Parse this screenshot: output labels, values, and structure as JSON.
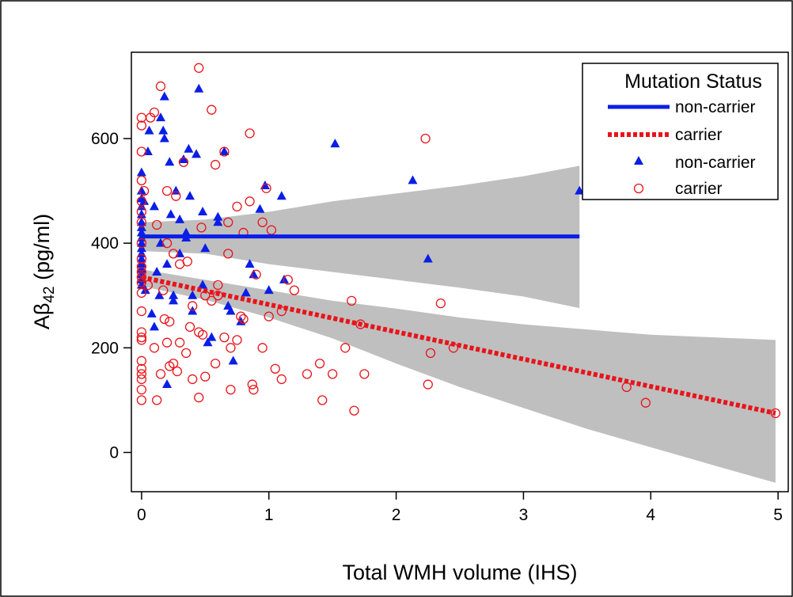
{
  "chart_data": {
    "type": "scatter",
    "xlabel": "Total WMH volume (IHS)",
    "ylabel_main": "Aβ",
    "ylabel_sub": "42",
    "ylabel_unit": " (pg/ml)",
    "xlim": [
      -0.08,
      5.08
    ],
    "ylim": [
      -75,
      765
    ],
    "x_ticks": [
      0,
      1,
      2,
      3,
      4,
      5
    ],
    "y_ticks": [
      0,
      200,
      400,
      600
    ],
    "colors": {
      "non_carrier": "#0a1ee6",
      "carrier": "#e8141a",
      "band": "#bfbfbf"
    },
    "legend": {
      "title": "Mutation Status",
      "position": "top-right",
      "entries": [
        {
          "label": "non-carrier",
          "kind": "solid-line",
          "color": "#0a1ee6"
        },
        {
          "label": "carrier",
          "kind": "dotted-line",
          "color": "#e8141a"
        },
        {
          "label": "non-carrier",
          "kind": "triangle",
          "color": "#0a1ee6"
        },
        {
          "label": "carrier",
          "kind": "circle",
          "color": "#e8141a"
        }
      ]
    },
    "fit_lines": [
      {
        "name": "non-carrier",
        "x": [
          0,
          3.44
        ],
        "y": [
          413,
          413
        ],
        "ci_x": [
          0,
          0.5,
          1.0,
          1.5,
          2.0,
          2.5,
          3.0,
          3.44
        ],
        "ci_upper": [
          440,
          445,
          460,
          480,
          495,
          510,
          528,
          548
        ],
        "ci_lower": [
          385,
          380,
          360,
          345,
          330,
          315,
          298,
          276
        ]
      },
      {
        "name": "carrier",
        "x": [
          0,
          4.98
        ],
        "y": [
          335,
          75
        ],
        "ci_x": [
          0,
          0.5,
          1.0,
          1.5,
          2.0,
          2.5,
          3.0,
          3.5,
          4.0,
          4.5,
          4.98
        ],
        "ci_upper": [
          350,
          330,
          310,
          290,
          275,
          258,
          245,
          235,
          225,
          220,
          215
        ],
        "ci_lower": [
          318,
          292,
          258,
          218,
          170,
          125,
          85,
          45,
          10,
          -25,
          -58
        ]
      }
    ],
    "series": [
      {
        "name": "non-carrier",
        "marker": "triangle",
        "x": [
          0,
          0,
          0,
          0,
          0,
          0,
          0,
          0,
          0,
          0,
          0,
          0,
          0,
          0,
          0,
          0,
          0,
          0,
          0.02,
          0.03,
          0.05,
          0.06,
          0.08,
          0.1,
          0.12,
          0.14,
          0.15,
          0.17,
          0.18,
          0.2,
          0.22,
          0.23,
          0.25,
          0.27,
          0.3,
          0.33,
          0.35,
          0.37,
          0.38,
          0.4,
          0.43,
          0.45,
          0.48,
          0.5,
          0.55,
          0.6,
          0.65,
          0.68,
          0.72,
          0.78,
          0.82,
          0.85,
          0.88,
          0.93,
          0.97,
          1.0,
          1.1,
          1.12,
          1.52,
          2.13,
          2.25,
          3.44,
          0.18,
          0.2,
          0.35,
          0.4,
          0.48,
          0.7,
          0.52,
          0.3,
          0.15,
          0.1,
          0.25,
          0.6
        ],
        "y": [
          535,
          500,
          485,
          470,
          455,
          440,
          430,
          420,
          410,
          400,
          390,
          380,
          370,
          360,
          350,
          340,
          330,
          320,
          480,
          310,
          575,
          615,
          265,
          470,
          345,
          300,
          640,
          615,
          680,
          130,
          555,
          455,
          290,
          500,
          445,
          560,
          420,
          580,
          490,
          300,
          570,
          695,
          460,
          390,
          220,
          440,
          575,
          280,
          175,
          250,
          305,
          360,
          340,
          465,
          510,
          310,
          490,
          330,
          590,
          520,
          370,
          500,
          600,
          360,
          410,
          270,
          320,
          270,
          210,
          380,
          400,
          240,
          300,
          450
        ]
      },
      {
        "name": "carrier",
        "marker": "circle",
        "x": [
          0,
          0,
          0,
          0,
          0,
          0,
          0,
          0,
          0,
          0,
          0,
          0,
          0,
          0,
          0,
          0,
          0,
          0,
          0,
          0,
          0,
          0,
          0,
          0,
          0.02,
          0.05,
          0.07,
          0.1,
          0.12,
          0.15,
          0.17,
          0.2,
          0.2,
          0.22,
          0.22,
          0.25,
          0.27,
          0.3,
          0.33,
          0.36,
          0.4,
          0.45,
          0.45,
          0.47,
          0.5,
          0.55,
          0.58,
          0.6,
          0.65,
          0.68,
          0.7,
          0.75,
          0.8,
          0.85,
          0.85,
          0.87,
          0.9,
          0.95,
          0.98,
          1.0,
          1.02,
          1.05,
          1.1,
          1.15,
          1.2,
          1.4,
          1.42,
          1.5,
          1.6,
          1.65,
          1.67,
          1.72,
          1.75,
          2.23,
          2.25,
          2.27,
          2.35,
          2.45,
          3.81,
          3.96,
          4.98,
          0.1,
          0.2,
          0.3,
          0.4,
          0.5,
          0.6,
          0.7,
          0.8,
          0.15,
          0.25,
          0.35,
          0.45,
          0.55,
          0.65,
          0.75,
          0.12,
          0.18,
          0.28,
          0.38,
          0.48,
          0.58,
          0.68,
          0.78,
          0.88,
          0.95,
          1.3,
          1.1
        ],
        "y": [
          640,
          625,
          575,
          520,
          480,
          460,
          440,
          400,
          370,
          355,
          345,
          335,
          325,
          305,
          270,
          230,
          220,
          215,
          175,
          160,
          150,
          140,
          120,
          100,
          500,
          320,
          640,
          650,
          435,
          700,
          310,
          500,
          400,
          250,
          165,
          380,
          490,
          210,
          555,
          365,
          280,
          735,
          230,
          430,
          300,
          655,
          550,
          320,
          575,
          440,
          200,
          470,
          420,
          610,
          480,
          130,
          340,
          440,
          505,
          260,
          425,
          160,
          270,
          330,
          310,
          170,
          100,
          150,
          200,
          290,
          80,
          245,
          150,
          600,
          130,
          190,
          285,
          200,
          125,
          95,
          75,
          200,
          210,
          360,
          140,
          145,
          300,
          120,
          255,
          150,
          170,
          190,
          105,
          290,
          220,
          215,
          100,
          255,
          155,
          240,
          225,
          170,
          380,
          260,
          120,
          200,
          150,
          140
        ]
      }
    ]
  }
}
